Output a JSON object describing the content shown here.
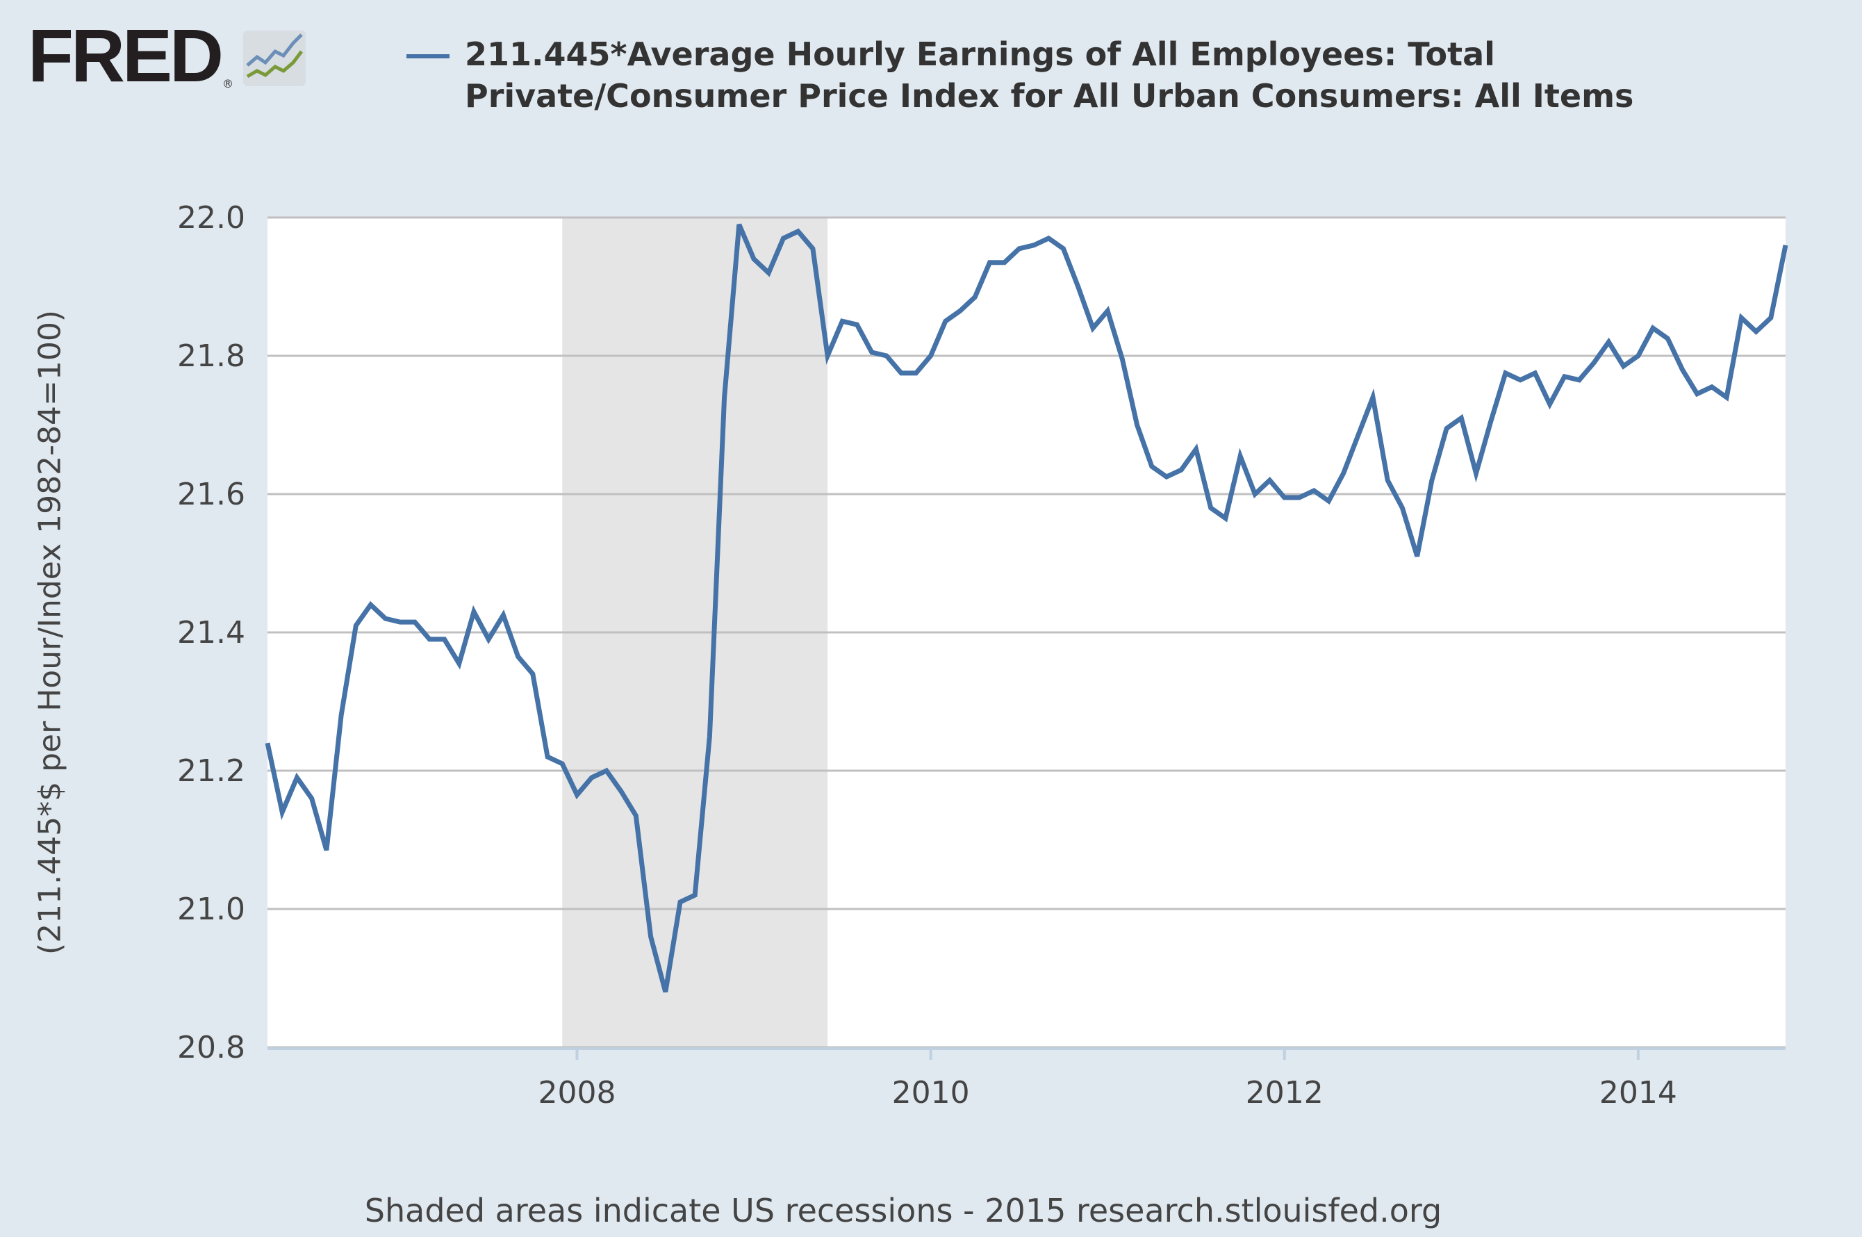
{
  "logo": {
    "text": "FRED",
    "registered": "®"
  },
  "colors": {
    "series": "#4572a7",
    "recession": "#e5e5e5",
    "grid": "#c0c0c0",
    "background": "#e1e9f0"
  },
  "chart_data": {
    "type": "line",
    "title": "211.445*Average Hourly Earnings of All Employees: Total Private/Consumer Price Index for All Urban Consumers: All Items",
    "ylabel": "(211.445*$ per Hour/Index 1982-84=100)",
    "xlabel": "",
    "start": "2006-04",
    "frequency": "monthly",
    "ylim": [
      20.8,
      22.0
    ],
    "xlim": [
      "2006-04",
      "2014-11"
    ],
    "yticks": [
      "20.8",
      "21.0",
      "21.2",
      "21.4",
      "21.6",
      "21.8",
      "22.0"
    ],
    "xticks": [
      {
        "label": "2008",
        "year": 2008
      },
      {
        "label": "2010",
        "year": 2010
      },
      {
        "label": "2012",
        "year": 2012
      },
      {
        "label": "2014",
        "year": 2014
      }
    ],
    "grid": true,
    "legend_placement": "top",
    "recessions": [
      {
        "start": "2007-12",
        "end": "2009-06"
      }
    ],
    "series": [
      {
        "name": "211.445*Average Hourly Earnings of All Employees: Total Private/Consumer Price Index for All Urban Consumers: All Items",
        "values": [
          21.24,
          21.14,
          21.19,
          21.16,
          21.085,
          21.28,
          21.41,
          21.44,
          21.42,
          21.415,
          21.415,
          21.39,
          21.39,
          21.355,
          21.43,
          21.39,
          21.425,
          21.365,
          21.34,
          21.22,
          21.21,
          21.165,
          21.19,
          21.2,
          21.17,
          21.135,
          20.96,
          20.88,
          21.01,
          21.02,
          21.25,
          21.74,
          21.99,
          21.94,
          21.92,
          21.97,
          21.98,
          21.955,
          21.8,
          21.85,
          21.845,
          21.805,
          21.8,
          21.775,
          21.775,
          21.8,
          21.85,
          21.865,
          21.885,
          21.935,
          21.935,
          21.955,
          21.96,
          21.97,
          21.955,
          21.9,
          21.84,
          21.865,
          21.795,
          21.7,
          21.64,
          21.625,
          21.635,
          21.665,
          21.58,
          21.565,
          21.655,
          21.6,
          21.62,
          21.595,
          21.595,
          21.605,
          21.59,
          21.63,
          21.685,
          21.74,
          21.62,
          21.58,
          21.51,
          21.62,
          21.695,
          21.71,
          21.63,
          21.705,
          21.775,
          21.765,
          21.775,
          21.73,
          21.77,
          21.765,
          21.79,
          21.82,
          21.785,
          21.8,
          21.84,
          21.825,
          21.78,
          21.745,
          21.755,
          21.74,
          21.855,
          21.835,
          21.855,
          21.96
        ]
      }
    ]
  },
  "footer": "Shaded areas indicate US recessions - 2015 research.stlouisfed.org"
}
